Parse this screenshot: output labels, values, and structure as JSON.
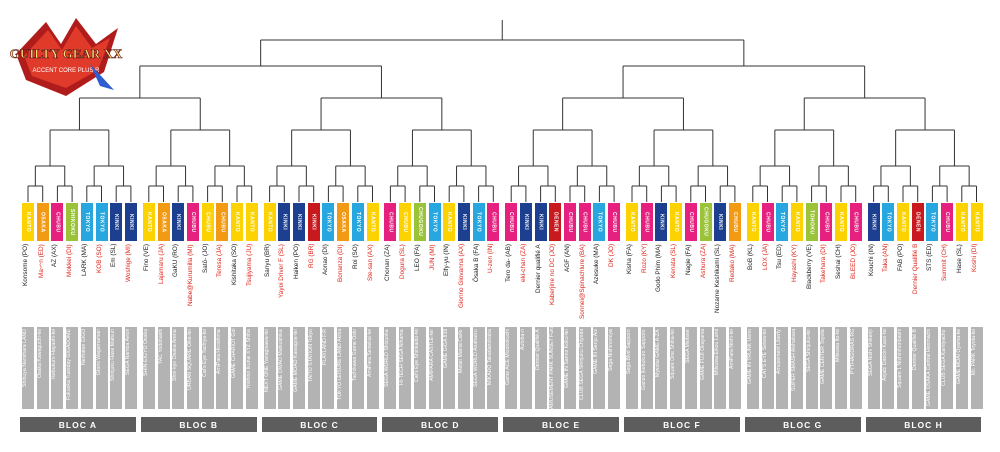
{
  "logo": {
    "title": "GUILTY GEAR XX",
    "subtitle": "ACCENT CORE PLUS R"
  },
  "colors": {
    "KANTO": "#e5207f",
    "CHUBU": "#e5207f",
    "TOKYO": "#27a6df",
    "KINKI": "#1d3f8f",
    "OSAKA": "#f39a15",
    "CHUGOKU": "#9ac33a",
    "SHIKOKU": "#9ac33a",
    "KANSAI": "#e5207f",
    "TOHOKU": "#9ac33a",
    "SKANTO": "#fcd300",
    "SCHUBU": "#f39a15",
    "DENEN": "#c7191e"
  },
  "blocs": [
    "BLOC A",
    "BLOC B",
    "BLOC C",
    "BLOC D",
    "BLOC E",
    "BLOC F",
    "BLOC G",
    "BLOC H"
  ],
  "entries": [
    {
      "tag": "KANTO",
      "tc": "SKANTO",
      "name": "Konsome (PO)",
      "red": false,
      "venue": "Shibuya Namihara LAND"
    },
    {
      "tag": "OSAKA",
      "tc": "OSAKA",
      "name": "Ma〜n (ED)",
      "red": true,
      "venue": "Osaka Kawaguchi-tei"
    },
    {
      "tag": "CHUBU",
      "tc": "CHUBU",
      "name": "AZ (AX)",
      "red": false,
      "venue": "Ikebukuro Hayashi-tei"
    },
    {
      "tag": "SHIKOKU",
      "tc": "SHIKOKU",
      "name": "Mokkei (DI)",
      "red": true,
      "venue": "Fukuoka Tuesday GIGADOME"
    },
    {
      "tag": "TOKYO",
      "tc": "TOKYO",
      "name": "LARK (MA)",
      "red": false,
      "venue": "Nerhaten GIGO"
    },
    {
      "tag": "TOKYO",
      "tc": "TOKYO",
      "name": "KOB (SO)",
      "red": true,
      "venue": "Gtomi Wagamaman"
    },
    {
      "tag": "KINKI",
      "tc": "KINKI",
      "name": "Em (SL)",
      "red": false,
      "venue": "Shinjuku Hase Matsuri"
    },
    {
      "tag": "KINKI",
      "tc": "KINKI",
      "name": "Woshige (MI)",
      "red": true,
      "venue": "SEGA Namba Avion"
    },
    {
      "tag": "KANTO",
      "tc": "SKANTO",
      "name": "Fino (VE)",
      "red": false,
      "venue": "SHIN-EIGYO Osaka"
    },
    {
      "tag": "OSAKA",
      "tc": "OSAKA",
      "name": "Lajamaru (JA)",
      "red": true,
      "venue": "TAC Yodobashi"
    },
    {
      "tag": "KINKI",
      "tc": "KINKI",
      "name": "GaKU (RO)",
      "red": false,
      "venue": "Shin-kyo Osaka Arena"
    },
    {
      "tag": "CHUBU",
      "tc": "CHUBU",
      "name": "Nabe@Kurumilla (MI)",
      "red": true,
      "venue": "URBAN SQUARE Oike-tei"
    },
    {
      "tag": "CHUBU",
      "tc": "SKANTO",
      "name": "Satō- (JO)",
      "red": false,
      "venue": "Cat's Eye Tachiya-tei"
    },
    {
      "tag": "CHUBU",
      "tc": "SCHUBU",
      "name": "Teresa (JA)",
      "red": true,
      "venue": "AmiPara Hiroshima"
    },
    {
      "tag": "KANTO",
      "tc": "SKANTO",
      "name": "Kishitaka (SO)",
      "red": false,
      "venue": "GAME CHARIOT Goi"
    },
    {
      "tag": "KANTO",
      "tc": "SKANTO",
      "name": "Tsujiyama (JU)",
      "red": true,
      "venue": "Yoshino Ikunai XYZ Shiba"
    },
    {
      "tag": "KANTO",
      "tc": "SKANTO",
      "name": "Sanyu (BR)",
      "red": false,
      "venue": "NEXT ONE Yanagisawa-tei"
    },
    {
      "tag": "KINKI",
      "tc": "KINKI",
      "name": "Yayoi Driver F (SL)",
      "red": true,
      "venue": "GAME OWAO Matsushika"
    },
    {
      "tag": "KINKI",
      "tc": "KINKI",
      "name": "Haiken (PO)",
      "red": false,
      "venue": "GAME MOAO Kawagoe-tei"
    },
    {
      "tag": "KINKI",
      "tc": "DENEN",
      "name": "RG (BR)",
      "red": true,
      "venue": "TAITO STATION Tokyo"
    },
    {
      "tag": "TOKYO",
      "tc": "TOKYO",
      "name": "Aonao (DI)",
      "red": false,
      "venue": "PLAYLAND F.R"
    },
    {
      "tag": "OSAKA",
      "tc": "OSAKA",
      "name": "Bonanza (DI)",
      "red": true,
      "venue": "TOKYO LEISURE LAND Akiba"
    },
    {
      "tag": "TOKYO",
      "tc": "TOKYO",
      "name": "Roi (SO)",
      "red": false,
      "venue": "Tachikawa Game Oslo"
    },
    {
      "tag": "KANTO",
      "tc": "SKANTO",
      "name": "Ste-san (AX)",
      "red": true,
      "venue": "AmiPara Seisekai-tei"
    },
    {
      "tag": "CHUBU",
      "tc": "CHUBU",
      "name": "Chonan (ZA)",
      "red": false,
      "venue": "SEGA WORLD Shizuoka"
    },
    {
      "tag": "CHUBU",
      "tc": "SKANTO",
      "name": "Dogura (SL)",
      "red": true,
      "venue": "Hi-TECH SEGA Nihama"
    },
    {
      "tag": "CHUGOKU",
      "tc": "CHUGOKU",
      "name": "LEO (FA)",
      "red": false,
      "venue": "Cat's Eye Shinkaido-tei"
    },
    {
      "tag": "TOKYO",
      "tc": "TOKYO",
      "name": "JUN (MI)",
      "red": true,
      "venue": "AMIPARA CASTLE-tei"
    },
    {
      "tag": "KANTO",
      "tc": "SKANTO",
      "name": "Elfy-yu (IN)",
      "red": false,
      "venue": "GAME GiGA 838"
    },
    {
      "tag": "KINKI",
      "tc": "KINKI",
      "name": "Gionno Giovanna (AX)",
      "red": true,
      "venue": "Melan Mania Carlo"
    },
    {
      "tag": "TOKYO",
      "tc": "TOKYO",
      "name": "Ōsaka B (FA)",
      "red": false,
      "venue": "SEGA WORLD Anahaizu"
    },
    {
      "tag": "CHUBU",
      "tc": "CHUBU",
      "name": "U-zen (IN)",
      "red": true,
      "venue": "MIKADO Takadanobaba"
    },
    {
      "tag": "CHUBU",
      "tc": "CHUBU",
      "name": "Tero da- (AB)",
      "red": false,
      "venue": "Game ACE Mizonokuchi"
    },
    {
      "tag": "KINKI",
      "tc": "KINKI",
      "name": "eki-chan (ZA)",
      "red": true,
      "venue": "Autoba-n"
    },
    {
      "tag": "KINKI",
      "tc": "KINKI",
      "name": "Dernier qualifié A",
      "red": false,
      "venue": "Dernier Qualifié A"
    },
    {
      "tag": "DENEN",
      "tc": "DENEN",
      "name": "Kaberjine no DC (JO)",
      "red": true,
      "venue": "AMUSEMENT PARK SUNSET Fukuoka"
    },
    {
      "tag": "CHUBU",
      "tc": "CHUBU",
      "name": "AGF (AN)",
      "red": false,
      "venue": "GAME IN Sanno Koku-tei"
    },
    {
      "tag": "CHUBU",
      "tc": "CHUBU",
      "name": "Sonnei@Spinachlure (BA)",
      "red": true,
      "venue": "CLUB SEGA Shinjuku Chiyoda"
    },
    {
      "tag": "TOKYO",
      "tc": "TOKYO",
      "name": "Azesuke (MA)",
      "red": false,
      "venue": "GAME IN Senju Aoi"
    },
    {
      "tag": "CHUBU",
      "tc": "CHUBU",
      "name": "DK (JO)",
      "red": true,
      "venue": "Sega Nishinomiya"
    },
    {
      "tag": "KANTO",
      "tc": "SKANTO",
      "name": "Kisha (FA)",
      "red": false,
      "venue": "Sega Blvd Sapporo"
    },
    {
      "tag": "CHUBU",
      "tc": "CHUBU",
      "name": "Rozo (KY)",
      "red": true,
      "venue": "Ganzo Ikebukuro Sapporo"
    },
    {
      "tag": "KINKI",
      "tc": "KINKI",
      "name": "Godo Phim (MA)",
      "red": false,
      "venue": "Mysotai GAME A-ZA"
    },
    {
      "tag": "KANTO",
      "tc": "SKANTO",
      "name": "Kenata (SL)",
      "red": true,
      "venue": "Square One Shiba-tei"
    },
    {
      "tag": "CHUBU",
      "tc": "CHUBU",
      "name": "Nagie (FA)",
      "red": false,
      "venue": "SEGA Meitsee"
    },
    {
      "tag": "CHUGOKU",
      "tc": "CHUGOKU",
      "name": "Ashura (ZA)",
      "red": true,
      "venue": "GAME FUJI Okayama"
    },
    {
      "tag": "KINKI",
      "tc": "KINKI",
      "name": "Nozame Keshikami (SL)",
      "red": false,
      "venue": "Mitsuwa Eikou Land"
    },
    {
      "tag": "CHUBU",
      "tc": "SCHUBU",
      "name": "Redako (MA)",
      "red": true,
      "venue": "AmiPara Nishi-tei"
    },
    {
      "tag": "KANTO",
      "tc": "SKANTO",
      "name": "BoB (KL)",
      "red": false,
      "venue": "GAME IN TRUNK Ueno"
    },
    {
      "tag": "CHUBU",
      "tc": "CHUBU",
      "name": "LOX (JA)",
      "red": true,
      "venue": "CAT'S EYE Seiwa-tei"
    },
    {
      "tag": "TOKYO",
      "tc": "TOKYO",
      "name": "Tsu (ED)",
      "red": false,
      "venue": "Amusement Liberty"
    },
    {
      "tag": "KANTO",
      "tc": "SKANTO",
      "name": "Hayashi (KY)",
      "red": true,
      "venue": "SUPER SMASH Akihabara"
    },
    {
      "tag": "TOHOKU",
      "tc": "TOHOKU",
      "name": "Blackberry (VE)",
      "red": false,
      "venue": "SEGA Shinjuku-tei"
    },
    {
      "tag": "CHUBU",
      "tc": "CHUBU",
      "name": "Takehara (DI)",
      "red": true,
      "venue": "GAME CENTER Toyota"
    },
    {
      "tag": "KANTO",
      "tc": "SKANTO",
      "name": "Seshai (CH)",
      "red": false,
      "venue": "Mitsuwa Ito-tei"
    },
    {
      "tag": "CHUBU",
      "tc": "CHUBU",
      "name": "BLEED (JO)",
      "red": true,
      "venue": "PYTHAGORAS RG"
    },
    {
      "tag": "KINKI",
      "tc": "KINKI",
      "name": "Kouchi (IN)",
      "red": false,
      "venue": "SEGA Nishi Shikenji"
    },
    {
      "tag": "TOKYO",
      "tc": "TOKYO",
      "name": "Taka (AN)",
      "red": true,
      "venue": "Anjabi Dancin Kaze-tei"
    },
    {
      "tag": "KANTO",
      "tc": "SKANTO",
      "name": "FAB (PO)",
      "red": false,
      "venue": "Square 1 Nishinihonbashi"
    },
    {
      "tag": "DENEN",
      "tc": "DENEN",
      "name": "Dernier Qualifié B",
      "red": true,
      "venue": "Dernier Qualifié B"
    },
    {
      "tag": "TOKYO",
      "tc": "TOKYO",
      "name": "STS (ED)",
      "red": false,
      "venue": "GAME OSAKA Central Honmachi"
    },
    {
      "tag": "CHUBU",
      "tc": "CHUBU",
      "name": "Summit (CH)",
      "red": true,
      "venue": "CLUB SEGA Kamiyacho"
    },
    {
      "tag": "KANTO",
      "tc": "SKANTO",
      "name": "Hase (SL)",
      "red": false,
      "venue": "GAME MOAI Oyama-tei"
    },
    {
      "tag": "KANTO",
      "tc": "SKANTO",
      "name": "Koshi (DI)",
      "red": true,
      "venue": "Mr. PARK Toyota-tei"
    }
  ]
}
